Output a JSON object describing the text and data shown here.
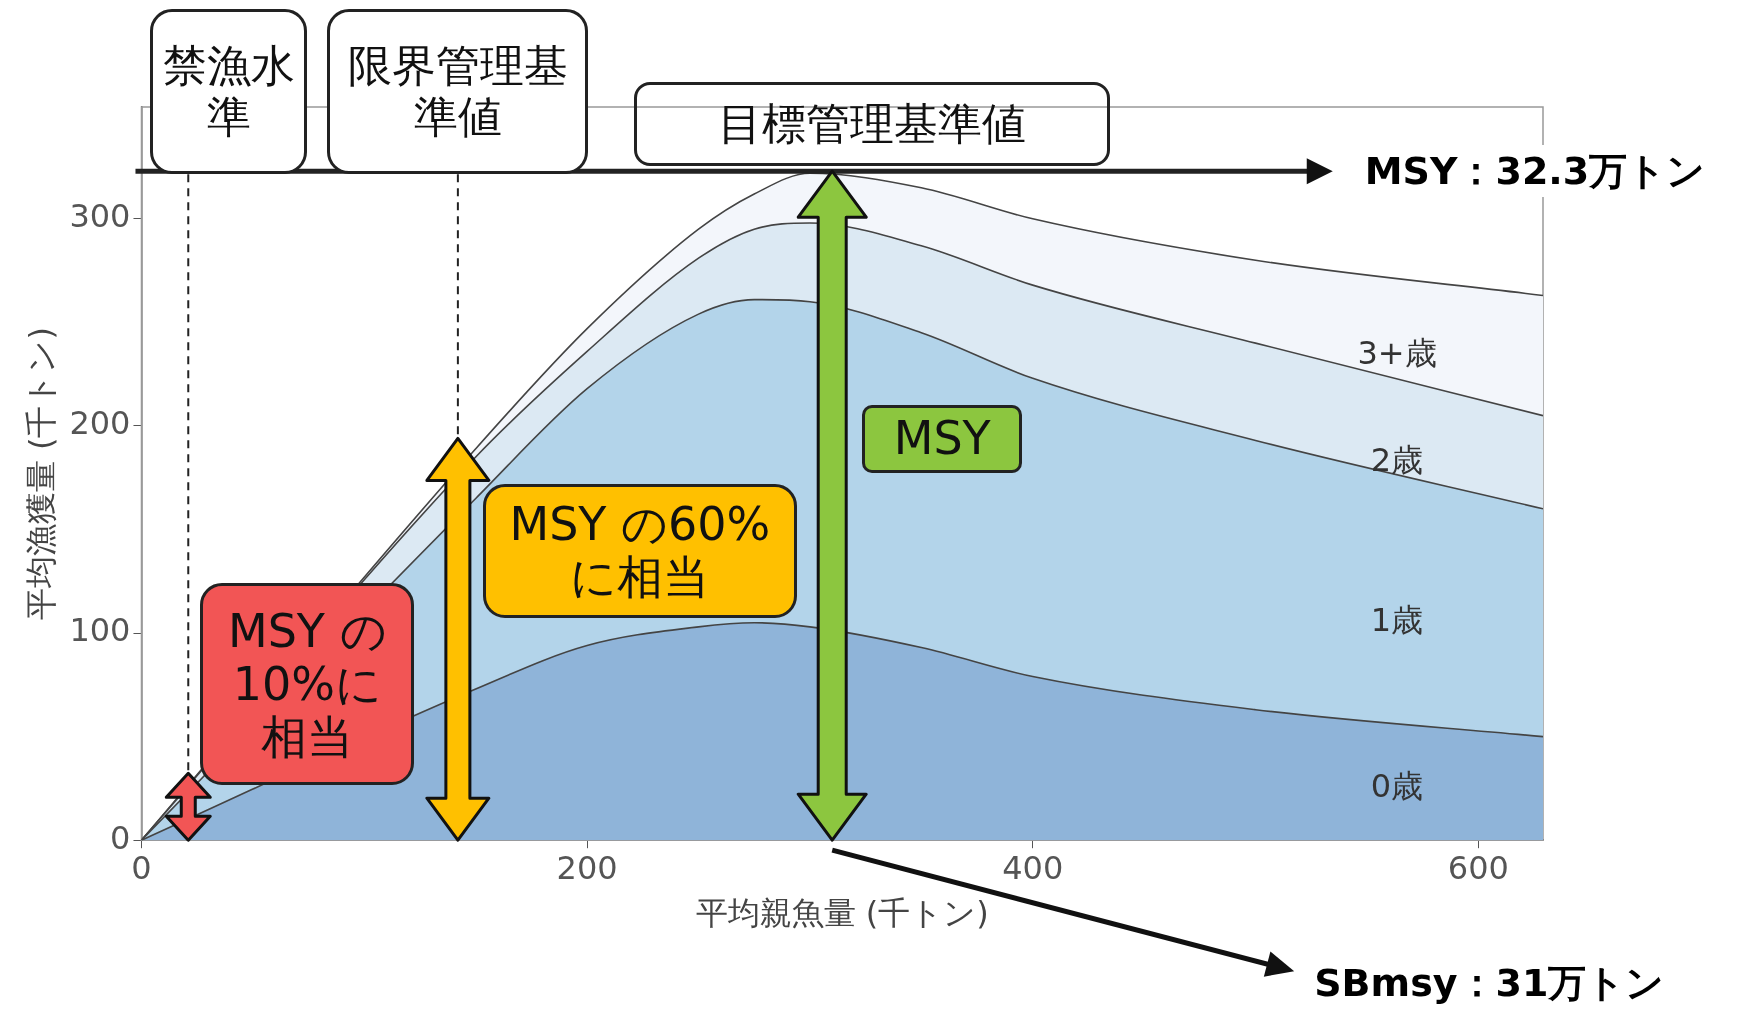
{
  "chart_data": {
    "type": "area",
    "stacked": true,
    "xlabel": "平均親魚量 (千トン)",
    "ylabel": "平均漁獲量 (千トン)",
    "x": [
      0,
      150,
      200,
      250,
      275,
      300,
      350,
      400,
      500,
      629
    ],
    "series": [
      {
        "name": "0歳",
        "color": "#8fb4d9",
        "values": [
          0,
          73,
          94,
          103,
          105,
          103,
          93,
          79,
          63,
          50
        ]
      },
      {
        "name": "1歳",
        "color": "#b3d4ea",
        "values": [
          0,
          92,
          124,
          151,
          156,
          157,
          152,
          144,
          130,
          110
        ]
      },
      {
        "name": "2歳",
        "color": "#dce9f3",
        "values": [
          0,
          20,
          18,
          27,
          34,
          38,
          42,
          45,
          47,
          45
        ]
      },
      {
        "name": "3+歳",
        "color": "#f3f6fb",
        "values": [
          0,
          4,
          11,
          14,
          17,
          24,
          28,
          32,
          40,
          58
        ]
      }
    ],
    "xlim": [
      0,
      629
    ],
    "ylim": [
      0,
      354
    ],
    "xticks": [
      0,
      200,
      400,
      600
    ],
    "yticks": [
      0,
      100,
      200,
      300
    ],
    "ref_lines": [
      {
        "axis": "x",
        "value": 21,
        "label": "禁漁水準",
        "line_style": "dashed"
      },
      {
        "axis": "x",
        "value": 142,
        "label": "限界管理基準値",
        "line_style": "dashed"
      },
      {
        "axis": "y",
        "value": 323,
        "label": "MSY：32.3万トン",
        "line_style": "solid"
      }
    ],
    "annotations": [
      {
        "text": "目標管理基準値",
        "x": 310,
        "y": 323
      },
      "MSY",
      {
        "text": "MSY の60%に相当",
        "x": 142,
        "y": 194
      },
      {
        "text": "MSY の10%に相当",
        "x": 21,
        "y": 32.3
      },
      "SBmsy：31万トン"
    ]
  }
}
